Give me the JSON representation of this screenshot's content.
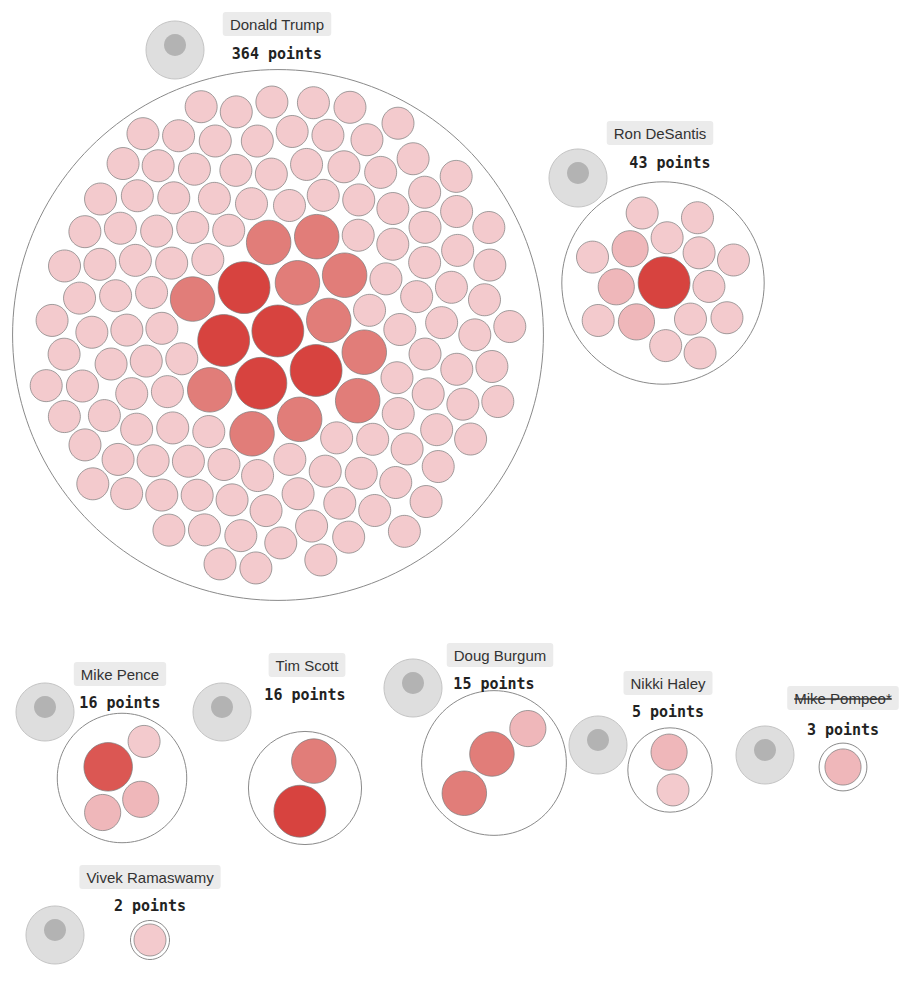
{
  "chart_data": {
    "type": "packed_bubble",
    "series": [
      {
        "name": "Donald Trump",
        "total": 364,
        "total_label": "364 points",
        "values": [
          10,
          10,
          10,
          10,
          10,
          6,
          6,
          6,
          6,
          6,
          6,
          6,
          6,
          6,
          6,
          6,
          2,
          2,
          2,
          2,
          2,
          2,
          2,
          2,
          2,
          2,
          2,
          2,
          2,
          2,
          2,
          2,
          2,
          2,
          2,
          2,
          2,
          2,
          2,
          2,
          2,
          2,
          2,
          2,
          2,
          2,
          2,
          2,
          2,
          2,
          2,
          2,
          2,
          2,
          2,
          2,
          2,
          2,
          2,
          2,
          2,
          2,
          2,
          2,
          2,
          2,
          2,
          2,
          2,
          2,
          2,
          2,
          2,
          2,
          2,
          2,
          2,
          2,
          2,
          2,
          2,
          2,
          2,
          2,
          2,
          2,
          2,
          2,
          2,
          2,
          2,
          2,
          2,
          2,
          2,
          2,
          2,
          2,
          2,
          2,
          2,
          2,
          2,
          2,
          2,
          2,
          2,
          2,
          2,
          2,
          2,
          2,
          2,
          2,
          2,
          2,
          2,
          2,
          2,
          2,
          2,
          2,
          2,
          2,
          2,
          2,
          2,
          2,
          2,
          2,
          2,
          2,
          2,
          2,
          2,
          2,
          2,
          2,
          2,
          2
        ]
      },
      {
        "name": "Ron DeSantis",
        "total": 43,
        "total_label": "43 points",
        "values": [
          10,
          3,
          3,
          3,
          2,
          2,
          2,
          2,
          2,
          2,
          2,
          2,
          2,
          2,
          2,
          2
        ]
      },
      {
        "name": "Mike Pence",
        "total": 16,
        "total_label": "16 points",
        "values": [
          8,
          3,
          3,
          2
        ]
      },
      {
        "name": "Tim Scott",
        "total": 16,
        "total_label": "16 points",
        "values": [
          10,
          6
        ]
      },
      {
        "name": "Doug Burgum",
        "total": 15,
        "total_label": "15 points",
        "values": [
          6,
          6,
          3
        ]
      },
      {
        "name": "Nikki Haley",
        "total": 5,
        "total_label": "5 points",
        "values": [
          3,
          2
        ]
      },
      {
        "name": "Mike Pompeo*",
        "total": 3,
        "total_label": "3 points",
        "values": [
          3
        ],
        "line_style": "strikethrough"
      },
      {
        "name": "Vivek Ramaswamy",
        "total": 2,
        "total_label": "2 points",
        "values": [
          2
        ]
      }
    ]
  }
}
